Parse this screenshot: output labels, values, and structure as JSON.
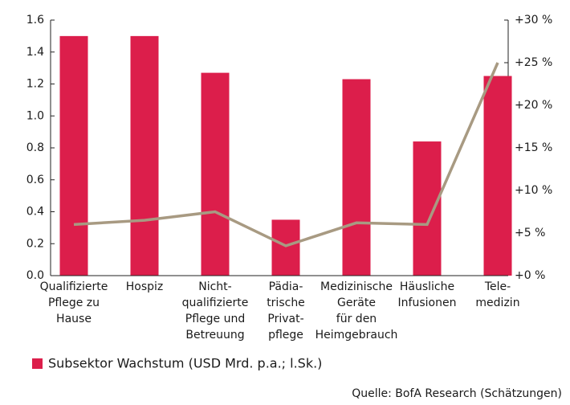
{
  "chart_data": {
    "type": "bar_line",
    "categories": [
      [
        "Qualifizierte",
        "Pflege zu",
        "Hause"
      ],
      [
        "Hospiz"
      ],
      [
        "Nicht-",
        "qualifizierte",
        "Pflege und",
        "Betreuung"
      ],
      [
        "Pädia-",
        "trische",
        "Privat-",
        "pflege"
      ],
      [
        "Medizinische",
        "Geräte",
        "für den",
        "Heimgebrauch"
      ],
      [
        "Häusliche",
        "Infusionen"
      ],
      [
        "Tele-",
        "medizin"
      ]
    ],
    "series": [
      {
        "name": "Subsektor Wachstum (USD Mrd. p.a.; l.Sk.)",
        "type": "bar",
        "color": "#dc1e4b",
        "values": [
          1.5,
          1.5,
          1.27,
          0.35,
          1.23,
          0.84,
          1.25
        ]
      },
      {
        "type": "line",
        "axis": "y2",
        "color": "#a89a82",
        "values": [
          6,
          6.5,
          7.5,
          3.5,
          6.2,
          6,
          25
        ]
      }
    ],
    "ylim": [
      0,
      1.6
    ],
    "yticks": [
      {
        "value": 0,
        "label": "0.0"
      },
      0.2,
      0.4,
      0.6,
      0.8,
      {
        "value": 1,
        "label": "1.0"
      },
      1.2,
      1.4,
      1.6
    ],
    "y2lim": [
      0,
      30
    ],
    "y2ticks": [
      {
        "value": 0,
        "label": "+0 %"
      },
      {
        "value": 5,
        "label": "+5 %"
      },
      {
        "value": 10,
        "label": "+10 %"
      },
      {
        "value": 15,
        "label": "+15 %"
      },
      {
        "value": 20,
        "label": "+20 %"
      },
      {
        "value": 25,
        "label": "+25 %"
      },
      {
        "value": 30,
        "label": "+30 %"
      }
    ],
    "source": "Quelle: BofA Research (Schätzungen)"
  }
}
